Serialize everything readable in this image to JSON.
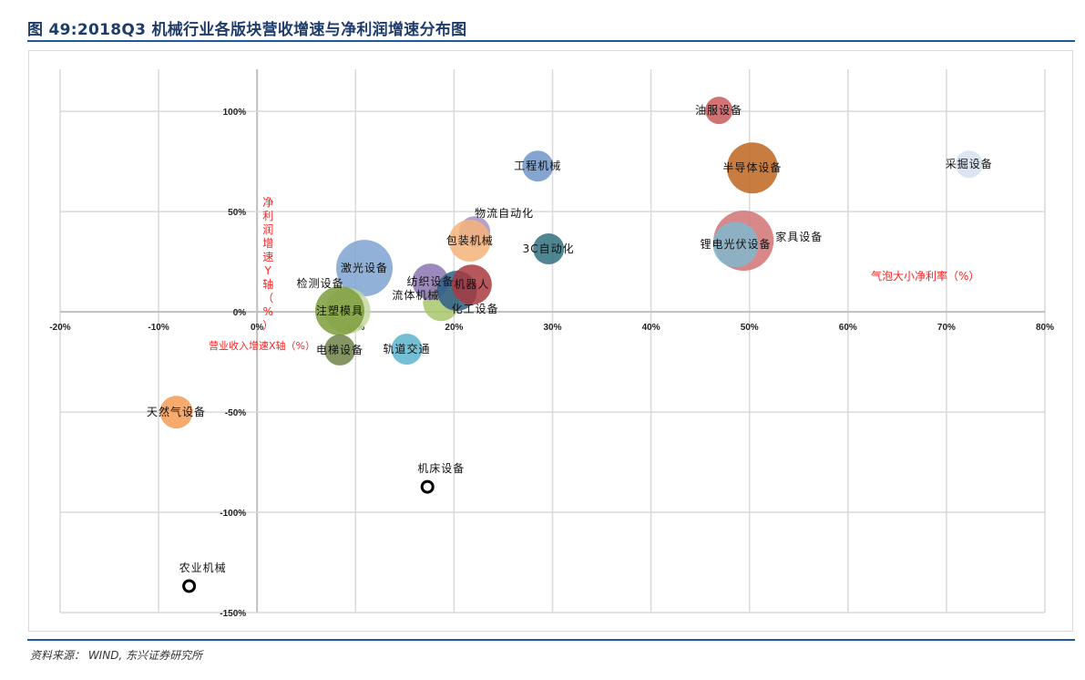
{
  "header": {
    "title": "图  49:2018Q3 机械行业各版块营收增速与净利润增速分布图"
  },
  "footer": {
    "source": "资料来源： WIND,  东兴证券研究所"
  },
  "chart_data": {
    "type": "scatter",
    "subtype": "bubble",
    "title": "2018Q3 机械行业各版块营收增速与净利润增速分布图",
    "xlabel": "营业收入增速X轴（%）",
    "ylabel": "净利润增速Y轴（%）",
    "size_label": "气泡大小净利率（%）",
    "xlim": [
      -20,
      80
    ],
    "ylim": [
      -150,
      121
    ],
    "x_ticks": [
      -20,
      -10,
      0,
      10,
      20,
      30,
      40,
      50,
      60,
      70,
      80
    ],
    "x_tick_labels": [
      "-20%",
      "-10%",
      "0%",
      "10%",
      "20%",
      "30%",
      "40%",
      "50%",
      "60%",
      "70%",
      "80%"
    ],
    "y_ticks": [
      100,
      50,
      0,
      -50,
      -100,
      -150
    ],
    "y_tick_labels": [
      "100%",
      "50%",
      "0%",
      "-50%",
      "-100%",
      "-150%"
    ],
    "grid": true,
    "points": [
      {
        "name": "油服设备",
        "x": 46.9,
        "y": 100.5,
        "size": 15,
        "color": "#c9595d",
        "label": "center"
      },
      {
        "name": "半导体设备",
        "x": 50.3,
        "y": 71.8,
        "size": 28,
        "color": "#c0651f",
        "label": "center"
      },
      {
        "name": "采掘设备",
        "x": 72.3,
        "y": 73.6,
        "size": 15,
        "color": "#d6e0ee",
        "label": "center"
      },
      {
        "name": "家具设备",
        "x": 49.4,
        "y": 35.5,
        "size": 33,
        "color": "#d27375",
        "label": "right"
      },
      {
        "name": "锂电光伏设备",
        "x": 48.6,
        "y": 33.6,
        "size": 25,
        "color": "#7fb8cc",
        "label": "center"
      },
      {
        "name": "工程机械",
        "x": 28.5,
        "y": 72.7,
        "size": 17,
        "color": "#6f95c8",
        "label": "center"
      },
      {
        "name": "物流自动化",
        "x": 22.1,
        "y": 40,
        "size": 17,
        "color": "#a592c3",
        "label": "above-right"
      },
      {
        "name": "包装机械",
        "x": 21.6,
        "y": 35.5,
        "size": 23,
        "color": "#f5b378",
        "label": "center"
      },
      {
        "name": "3C自动化",
        "x": 29.6,
        "y": 31.4,
        "size": 17,
        "color": "#31707f",
        "label": "center"
      },
      {
        "name": "激光设备",
        "x": 10.9,
        "y": 21.8,
        "size": 31,
        "color": "#7ea3d1",
        "label": "center"
      },
      {
        "name": "流体机械",
        "x": 18.7,
        "y": 4.5,
        "size": 20,
        "color": "#a9c66a",
        "label": "below-left"
      },
      {
        "name": "纺织设备",
        "x": 17.6,
        "y": 15,
        "size": 20,
        "color": "#8c76b0",
        "label": "center"
      },
      {
        "name": "化工设备",
        "x": 20.3,
        "y": 10.5,
        "size": 22,
        "color": "#2e5e86",
        "label": "below-right"
      },
      {
        "name": "机器人",
        "x": 21.8,
        "y": 13.6,
        "size": 22,
        "color": "#a83a3e",
        "label": "center"
      },
      {
        "name": "检测设备",
        "x": 9.2,
        "y": 0.5,
        "size": 25,
        "color": "#c4d9a0",
        "label": "above-left"
      },
      {
        "name": "注塑模具",
        "x": 8.4,
        "y": 0.5,
        "size": 27,
        "color": "#7e9e3c",
        "label": "center"
      },
      {
        "name": "电梯设备",
        "x": 8.4,
        "y": -19,
        "size": 17,
        "color": "#6e8446",
        "label": "center"
      },
      {
        "name": "轨道交通",
        "x": 15.2,
        "y": -18.6,
        "size": 17,
        "color": "#5cb4cc",
        "label": "center"
      },
      {
        "name": "天然气设备",
        "x": -8.2,
        "y": -50,
        "size": 18,
        "color": "#f59b55",
        "label": "center"
      },
      {
        "name": "机床设备",
        "x": 17.3,
        "y": -87.3,
        "size": 6,
        "color": "hollow",
        "label": "above"
      },
      {
        "name": "农业机械",
        "x": -6.9,
        "y": -136.8,
        "size": 6,
        "color": "hollow",
        "label": "above"
      }
    ]
  }
}
